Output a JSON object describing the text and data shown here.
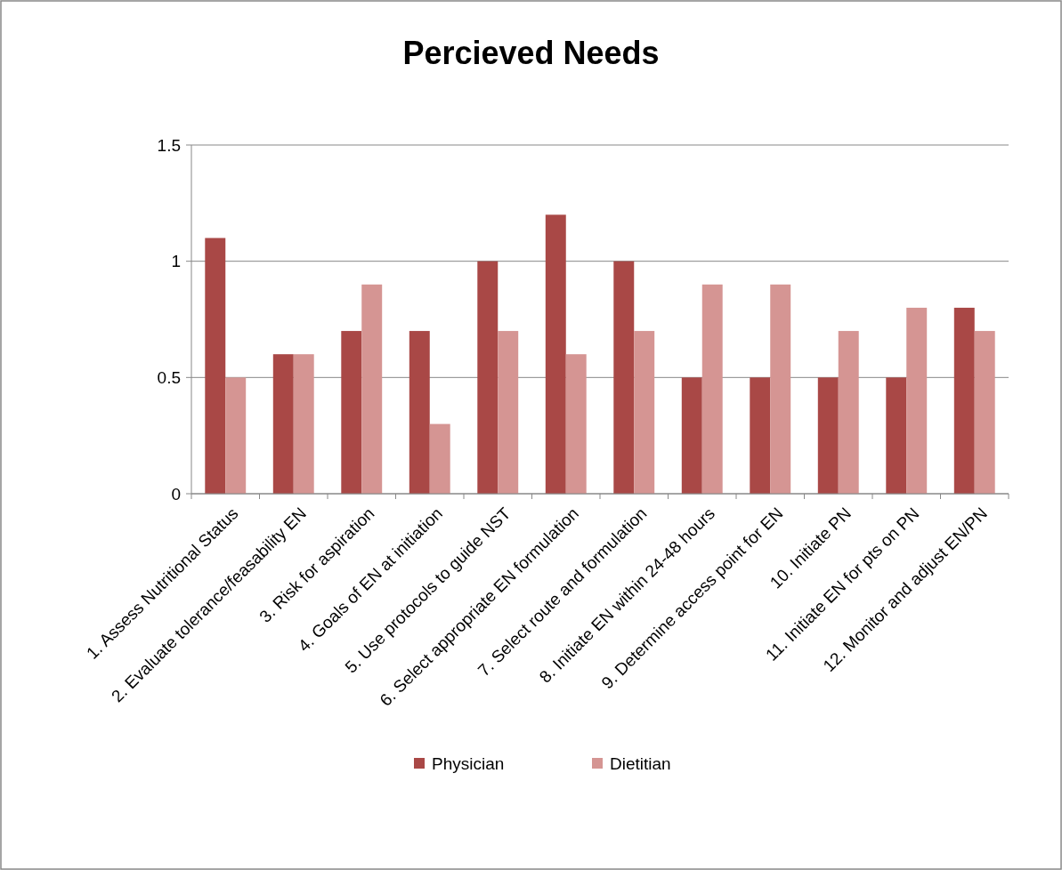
{
  "chart_data": {
    "type": "bar",
    "title": "Percieved Needs",
    "categories": [
      "1. Assess Nutritional Status",
      "2. Evaluate tolerance/feasability EN",
      "3. Risk for aspiration",
      "4. Goals of EN at initiation",
      "5. Use protocols to guide NST",
      "6. Select appropriate EN formulation",
      "7. Select route and formulation",
      "8. Initiate EN within 24-48 hours",
      "9. Determine access point for EN",
      "10. Initiate PN",
      "11. Initiate EN for pts on PN",
      "12. Monitor and adjust EN/PN"
    ],
    "series": [
      {
        "name": "Physician",
        "color": "#a94846",
        "values": [
          1.1,
          0.6,
          0.7,
          0.7,
          1.0,
          1.2,
          1.0,
          0.5,
          0.5,
          0.5,
          0.5,
          0.8
        ]
      },
      {
        "name": "Dietitian",
        "color": "#d59593",
        "values": [
          0.5,
          0.6,
          0.9,
          0.3,
          0.7,
          0.6,
          0.7,
          0.9,
          0.9,
          0.7,
          0.8,
          0.7
        ]
      }
    ],
    "ylim": [
      0,
      1.5
    ],
    "yticks": [
      0,
      0.5,
      1,
      1.5
    ],
    "grid": "y",
    "legend": "bottom"
  }
}
